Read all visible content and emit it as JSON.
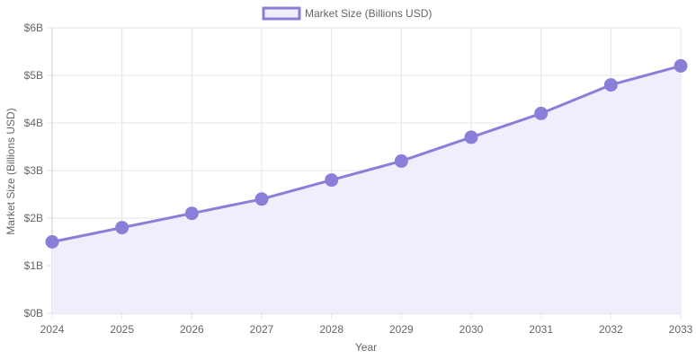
{
  "chart_data": {
    "type": "area",
    "categories": [
      "2024",
      "2025",
      "2026",
      "2027",
      "2028",
      "2029",
      "2030",
      "2031",
      "2032",
      "2033"
    ],
    "series": [
      {
        "name": "Market Size (Billions USD)",
        "values": [
          1.5,
          1.8,
          2.1,
          2.4,
          2.8,
          3.2,
          3.7,
          4.2,
          4.8,
          5.2
        ]
      }
    ],
    "xlabel": "Year",
    "ylabel": "Market Size (Billions USD)",
    "ylim": [
      0,
      6
    ],
    "yticks": [
      0,
      1,
      2,
      3,
      4,
      5,
      6
    ],
    "ytick_labels": [
      "$0B",
      "$1B",
      "$2B",
      "$3B",
      "$4B",
      "$5B",
      "$6B"
    ],
    "grid": true,
    "legend_position": "top-center",
    "colors": {
      "line": "#8a7fd8",
      "fill": "#f0eefb",
      "grid": "#e5e5e5",
      "axis": "#cccccc",
      "text": "#666666"
    }
  }
}
